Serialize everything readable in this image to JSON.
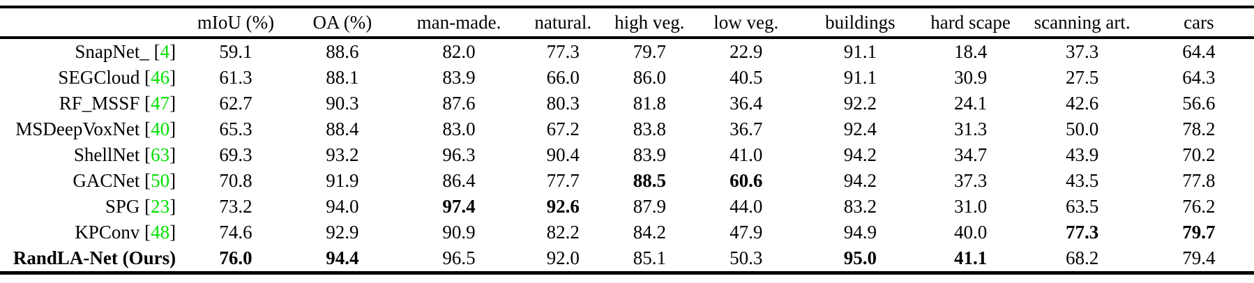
{
  "table": {
    "columns": [
      "",
      "mIoU (%)",
      "OA (%)",
      "man-made.",
      "natural.",
      "high veg.",
      "low veg.",
      "buildings",
      "hard scape",
      "scanning art.",
      "cars"
    ],
    "rows": [
      {
        "method": "SnapNet_",
        "cite": "4",
        "bold_method": false,
        "values": [
          "59.1",
          "88.6",
          "82.0",
          "77.3",
          "79.7",
          "22.9",
          "91.1",
          "18.4",
          "37.3",
          "64.4"
        ],
        "bold": [
          false,
          false,
          false,
          false,
          false,
          false,
          false,
          false,
          false,
          false
        ]
      },
      {
        "method": "SEGCloud",
        "cite": "46",
        "bold_method": false,
        "values": [
          "61.3",
          "88.1",
          "83.9",
          "66.0",
          "86.0",
          "40.5",
          "91.1",
          "30.9",
          "27.5",
          "64.3"
        ],
        "bold": [
          false,
          false,
          false,
          false,
          false,
          false,
          false,
          false,
          false,
          false
        ]
      },
      {
        "method": "RF_MSSF",
        "cite": "47",
        "bold_method": false,
        "values": [
          "62.7",
          "90.3",
          "87.6",
          "80.3",
          "81.8",
          "36.4",
          "92.2",
          "24.1",
          "42.6",
          "56.6"
        ],
        "bold": [
          false,
          false,
          false,
          false,
          false,
          false,
          false,
          false,
          false,
          false
        ]
      },
      {
        "method": "MSDeepVoxNet",
        "cite": "40",
        "bold_method": false,
        "values": [
          "65.3",
          "88.4",
          "83.0",
          "67.2",
          "83.8",
          "36.7",
          "92.4",
          "31.3",
          "50.0",
          "78.2"
        ],
        "bold": [
          false,
          false,
          false,
          false,
          false,
          false,
          false,
          false,
          false,
          false
        ]
      },
      {
        "method": "ShellNet",
        "cite": "63",
        "bold_method": false,
        "values": [
          "69.3",
          "93.2",
          "96.3",
          "90.4",
          "83.9",
          "41.0",
          "94.2",
          "34.7",
          "43.9",
          "70.2"
        ],
        "bold": [
          false,
          false,
          false,
          false,
          false,
          false,
          false,
          false,
          false,
          false
        ]
      },
      {
        "method": "GACNet",
        "cite": "50",
        "bold_method": false,
        "values": [
          "70.8",
          "91.9",
          "86.4",
          "77.7",
          "88.5",
          "60.6",
          "94.2",
          "37.3",
          "43.5",
          "77.8"
        ],
        "bold": [
          false,
          false,
          false,
          false,
          true,
          true,
          false,
          false,
          false,
          false
        ]
      },
      {
        "method": "SPG",
        "cite": "23",
        "bold_method": false,
        "values": [
          "73.2",
          "94.0",
          "97.4",
          "92.6",
          "87.9",
          "44.0",
          "83.2",
          "31.0",
          "63.5",
          "76.2"
        ],
        "bold": [
          false,
          false,
          true,
          true,
          false,
          false,
          false,
          false,
          false,
          false
        ]
      },
      {
        "method": "KPConv",
        "cite": "48",
        "bold_method": false,
        "values": [
          "74.6",
          "92.9",
          "90.9",
          "82.2",
          "84.2",
          "47.9",
          "94.9",
          "40.0",
          "77.3",
          "79.7"
        ],
        "bold": [
          false,
          false,
          false,
          false,
          false,
          false,
          false,
          false,
          true,
          true
        ]
      },
      {
        "method": "RandLA-Net (Ours)",
        "cite": "",
        "bold_method": true,
        "values": [
          "76.0",
          "94.4",
          "96.5",
          "92.0",
          "85.1",
          "50.3",
          "95.0",
          "41.1",
          "68.2",
          "79.4"
        ],
        "bold": [
          true,
          true,
          false,
          false,
          false,
          false,
          true,
          true,
          false,
          false
        ]
      }
    ]
  },
  "colors": {
    "citation_green": "#00e000",
    "text": "#000000",
    "background": "#ffffff"
  }
}
